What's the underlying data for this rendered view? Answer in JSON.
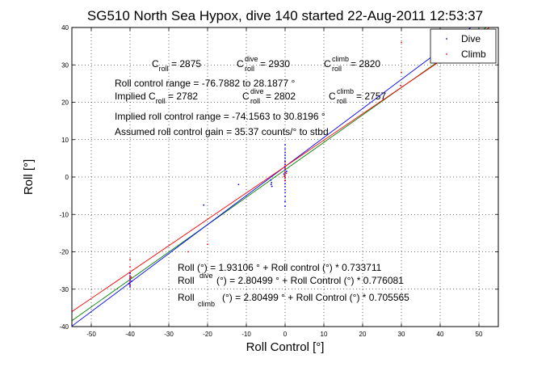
{
  "chart_data": {
    "type": "scatter",
    "title": "SG510 North Sea Hypox, dive 140 started 22-Aug-2011 12:53:37",
    "xlabel": "Roll Control [°]",
    "ylabel": "Roll [°]",
    "xlim": [
      -55,
      55
    ],
    "ylim": [
      -40,
      40
    ],
    "xticks": [
      -50,
      -40,
      -30,
      -20,
      -10,
      0,
      10,
      20,
      30,
      40,
      50
    ],
    "yticks": [
      -40,
      -30,
      -20,
      -10,
      0,
      10,
      20,
      30,
      40
    ],
    "grid": true,
    "legend": {
      "position": "top-right",
      "entries": [
        "Dive",
        "Climb"
      ]
    },
    "colors": {
      "dive": "#0000ff",
      "climb": "#ff0000",
      "fit_all": "#008000"
    },
    "series": [
      {
        "name": "Dive",
        "points": [
          [
            0,
            8.6
          ],
          [
            0,
            7.5
          ],
          [
            0,
            6.6
          ],
          [
            0,
            5.8
          ],
          [
            0,
            5.0
          ],
          [
            0,
            4.2
          ],
          [
            0,
            3.4
          ],
          [
            0,
            2.6
          ],
          [
            0,
            1.9
          ],
          [
            0,
            1.2
          ],
          [
            0,
            0.5
          ],
          [
            0,
            -0.3
          ],
          [
            0,
            -1.0
          ],
          [
            0,
            -1.8
          ],
          [
            0,
            -2.6
          ],
          [
            0,
            -3.4
          ],
          [
            0,
            -4.2
          ],
          [
            0,
            -5.2
          ],
          [
            0,
            -6.5
          ],
          [
            0,
            -7.8
          ],
          [
            0.4,
            1.5
          ],
          [
            -0.3,
            0.8
          ],
          [
            -3.5,
            -1.5
          ],
          [
            -3.6,
            -2.0
          ],
          [
            -3.4,
            -2.5
          ],
          [
            -3.7,
            -0.8
          ],
          [
            -40,
            -27.0
          ],
          [
            -40,
            -27.6
          ],
          [
            -40,
            -28.2
          ],
          [
            -40,
            -28.8
          ],
          [
            -40,
            -29.4
          ],
          [
            -40,
            -26.4
          ],
          [
            -40,
            -25.8
          ],
          [
            -39.6,
            -27.9
          ],
          [
            -40.3,
            -28.5
          ],
          [
            -12,
            -2.0
          ],
          [
            -21,
            -7.5
          ]
        ]
      },
      {
        "name": "Climb",
        "points": [
          [
            0,
            3.0
          ],
          [
            0,
            2.2
          ],
          [
            0,
            1.4
          ],
          [
            0,
            0.6
          ],
          [
            0,
            -0.2
          ],
          [
            0,
            -0.9
          ],
          [
            0,
            4.0
          ],
          [
            0.3,
            1.0
          ],
          [
            -0.2,
            0.2
          ],
          [
            -40,
            -22.0
          ],
          [
            -40,
            -24.0
          ],
          [
            -40,
            -25.5
          ],
          [
            -40,
            -26.5
          ],
          [
            -40,
            -27.2
          ],
          [
            -40,
            -28.0
          ],
          [
            -40,
            -29.0
          ],
          [
            -39.7,
            -26.8
          ],
          [
            30,
            36.0
          ],
          [
            30,
            28.0
          ],
          [
            29.8,
            24.5
          ],
          [
            -20,
            -18.0
          ],
          [
            -25,
            -20.0
          ]
        ]
      }
    ],
    "fits": [
      {
        "label": "all",
        "intercept": 1.93106,
        "slope": 0.733711
      },
      {
        "label": "dive",
        "intercept": 2.80499,
        "slope": 0.776081
      },
      {
        "label": "climb",
        "intercept": 2.80499,
        "slope": 0.705565
      }
    ],
    "annotations": {
      "c_roll": {
        "prefix": "C",
        "sub": "roll",
        "value": " = 2875"
      },
      "c_roll_dive": {
        "prefix": "C",
        "sup": "dive",
        "sub": "roll",
        "value": " = 2930"
      },
      "c_roll_climb": {
        "prefix": "C",
        "sup": "climb",
        "sub": "roll",
        "value": " = 2820"
      },
      "range": "Roll control range = -76.7882 to 28.1877 °",
      "implied_c_roll": {
        "prefix": "Implied C",
        "sub": "roll",
        "value": " = 2782"
      },
      "implied_c_roll_dive": {
        "prefix": "C",
        "sup": "dive",
        "sub": "roll",
        "value": " = 2802"
      },
      "implied_c_roll_climb": {
        "prefix": "C",
        "sup": "climb",
        "sub": "roll",
        "value": " = 2757"
      },
      "implied_range": "Implied roll control range = -74.1563 to 30.8196 °",
      "gain": "Assumed roll control gain = 35.37 counts/° to stbd",
      "eq_all": "Roll (°) = 1.93106 ° + Roll control (°) * 0.733711",
      "eq_dive": {
        "prefix": "Roll",
        "sub": "dive",
        "value": " (°) = 2.80499 ° + Roll Control (°) * 0.776081"
      },
      "eq_climb": {
        "prefix": "Roll",
        "sub": "climb",
        "value": " (°) = 2.80499 ° + Roll Control (°) * 0.705565"
      }
    }
  }
}
